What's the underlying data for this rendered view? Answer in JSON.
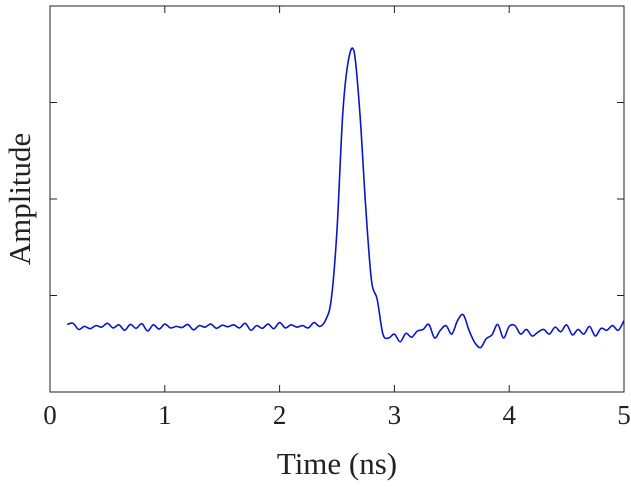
{
  "chart_data": {
    "type": "line",
    "xlabel": "Time (ns)",
    "ylabel": "Amplitude",
    "xlim": [
      0,
      5
    ],
    "ylim": [
      0,
      1
    ],
    "x_ticks": [
      0,
      1,
      2,
      3,
      4,
      5
    ],
    "x_tick_labels": [
      "0",
      "1",
      "2",
      "3",
      "4",
      "5"
    ],
    "y_ticks": [
      0.25,
      0.5,
      0.75
    ],
    "y_tick_labels": [],
    "grid": false,
    "series": [
      {
        "color": "#0a14c8",
        "x": [
          0.15,
          0.2,
          0.25,
          0.3,
          0.35,
          0.4,
          0.45,
          0.5,
          0.55,
          0.6,
          0.65,
          0.7,
          0.75,
          0.8,
          0.85,
          0.9,
          0.95,
          1.0,
          1.05,
          1.1,
          1.15,
          1.2,
          1.25,
          1.3,
          1.35,
          1.4,
          1.45,
          1.5,
          1.55,
          1.6,
          1.65,
          1.7,
          1.75,
          1.8,
          1.85,
          1.9,
          1.95,
          2.0,
          2.05,
          2.1,
          2.15,
          2.2,
          2.25,
          2.3,
          2.35,
          2.4,
          2.45,
          2.5,
          2.55,
          2.6,
          2.65,
          2.7,
          2.75,
          2.8,
          2.85,
          2.9,
          2.95,
          3.0,
          3.05,
          3.1,
          3.15,
          3.2,
          3.25,
          3.3,
          3.35,
          3.4,
          3.45,
          3.5,
          3.55,
          3.6,
          3.65,
          3.7,
          3.75,
          3.8,
          3.85,
          3.9,
          3.95,
          4.0,
          4.05,
          4.1,
          4.15,
          4.2,
          4.25,
          4.3,
          4.35,
          4.4,
          4.45,
          4.5,
          4.55,
          4.6,
          4.65,
          4.7,
          4.75,
          4.8,
          4.85,
          4.9,
          4.95,
          5.0
        ],
        "y": [
          0.175,
          0.178,
          0.162,
          0.17,
          0.164,
          0.172,
          0.168,
          0.178,
          0.166,
          0.174,
          0.16,
          0.175,
          0.165,
          0.177,
          0.158,
          0.174,
          0.163,
          0.176,
          0.166,
          0.17,
          0.167,
          0.175,
          0.161,
          0.172,
          0.168,
          0.176,
          0.165,
          0.173,
          0.169,
          0.174,
          0.166,
          0.178,
          0.16,
          0.172,
          0.165,
          0.176,
          0.164,
          0.18,
          0.166,
          0.174,
          0.168,
          0.172,
          0.166,
          0.18,
          0.17,
          0.186,
          0.24,
          0.42,
          0.72,
          0.86,
          0.88,
          0.72,
          0.48,
          0.29,
          0.24,
          0.15,
          0.14,
          0.15,
          0.13,
          0.152,
          0.142,
          0.158,
          0.162,
          0.175,
          0.14,
          0.16,
          0.172,
          0.15,
          0.185,
          0.2,
          0.16,
          0.128,
          0.115,
          0.138,
          0.148,
          0.175,
          0.14,
          0.17,
          0.172,
          0.15,
          0.162,
          0.145,
          0.155,
          0.162,
          0.15,
          0.168,
          0.156,
          0.174,
          0.148,
          0.162,
          0.15,
          0.17,
          0.145,
          0.165,
          0.16,
          0.172,
          0.16,
          0.185
        ]
      }
    ]
  }
}
